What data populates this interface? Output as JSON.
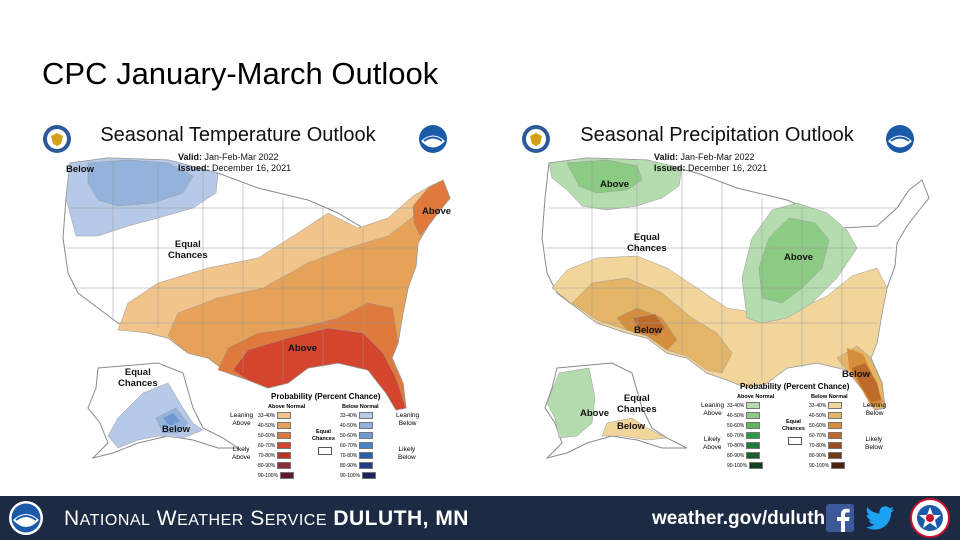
{
  "slide": {
    "title": "CPC January-March Outlook"
  },
  "temperature": {
    "title": "Seasonal Temperature Outlook",
    "valid_label": "Valid:",
    "valid_value": "Jan-Feb-Mar 2022",
    "issued_label": "Issued:",
    "issued_value": "December 16, 2021",
    "map_labels": {
      "below_nw": "Below",
      "equal": [
        "Equal",
        "Chances"
      ],
      "above_ne": "Above",
      "above_south": "Above",
      "ak_equal": [
        "Equal",
        "Chances"
      ],
      "ak_below": "Below"
    },
    "legend": {
      "title": "Probability (Percent Chance)",
      "left_head": "Above Normal",
      "right_head": "Below Normal",
      "left_side_top": [
        "Leaning",
        "Above"
      ],
      "left_side_bottom": [
        "Likely",
        "Above"
      ],
      "right_side_top": [
        "Leaning",
        "Below"
      ],
      "right_side_bottom": [
        "Likely",
        "Below"
      ],
      "equal": [
        "Equal",
        "Chances"
      ],
      "ranges": [
        "33-40%",
        "40-50%",
        "50-60%",
        "60-70%",
        "70-80%",
        "80-90%",
        "90-100%"
      ],
      "left_colors": [
        "#f0c48a",
        "#e7a25a",
        "#e07a3c",
        "#d3452c",
        "#b8322a",
        "#8c2a3a",
        "#5c1a2a"
      ],
      "right_colors": [
        "#b7c9e8",
        "#93b3dd",
        "#6e9ad0",
        "#4a80c4",
        "#2f5fa8",
        "#233c86",
        "#1b2260"
      ]
    }
  },
  "precipitation": {
    "title": "Seasonal Precipitation Outlook",
    "valid_label": "Valid:",
    "valid_value": "Jan-Feb-Mar 2022",
    "issued_label": "Issued:",
    "issued_value": "December 16, 2021",
    "map_labels": {
      "above_nw": "Above",
      "equal": [
        "Equal",
        "Chances"
      ],
      "above_mw": "Above",
      "below_tx": "Below",
      "below_fl": "Below",
      "ak_above": "Above",
      "ak_equal": [
        "Equal",
        "Chances"
      ],
      "ak_below": "Below"
    },
    "legend": {
      "title": "Probability (Percent Chance)",
      "left_head": "Above Normal",
      "right_head": "Below Normal",
      "left_side_top": [
        "Leaning",
        "Above"
      ],
      "left_side_bottom": [
        "Likely",
        "Above"
      ],
      "right_side_top": [
        "Leaning",
        "Below"
      ],
      "right_side_bottom": [
        "Likely",
        "Below"
      ],
      "equal": [
        "Equal",
        "Chances"
      ],
      "ranges": [
        "33-40%",
        "40-50%",
        "50-60%",
        "60-70%",
        "70-80%",
        "80-90%",
        "90-100%"
      ],
      "left_colors": [
        "#b5dcae",
        "#8ccb83",
        "#5fb55a",
        "#2f9a44",
        "#1f7a3a",
        "#195f2e",
        "#113f1f"
      ],
      "right_colors": [
        "#f2d59a",
        "#e4b467",
        "#d58e3c",
        "#bd6a2a",
        "#9a4e20",
        "#78391a",
        "#4a2410"
      ]
    }
  },
  "map_colors": {
    "land": "#ffffff",
    "border": "#8a8a8a",
    "temp_lean_above": "#f0c48a",
    "temp_above_40": "#e7a25a",
    "temp_above_50": "#e07a3c",
    "temp_above_60": "#d3452c",
    "temp_lean_below": "#b7c9e8",
    "temp_below_40": "#93b3dd",
    "precip_lean_above": "#b5dcae",
    "precip_above_40": "#8ccb83",
    "precip_lean_below": "#f2d59a",
    "precip_below_40": "#e4b467",
    "precip_below_50": "#d58e3c",
    "precip_below_60": "#bd6a2a"
  },
  "footer": {
    "nws_first": "N",
    "nws_rest": "ATIONAL",
    "w_first": "W",
    "w_rest": "EATHER",
    "s_first": "S",
    "s_rest": "ERVICE",
    "office": "DULUTH, MN",
    "url": "weather.gov/duluth",
    "colors": {
      "bar": "#1c2a43",
      "facebook": "#3b5998",
      "twitter": "#1da1f2"
    }
  }
}
